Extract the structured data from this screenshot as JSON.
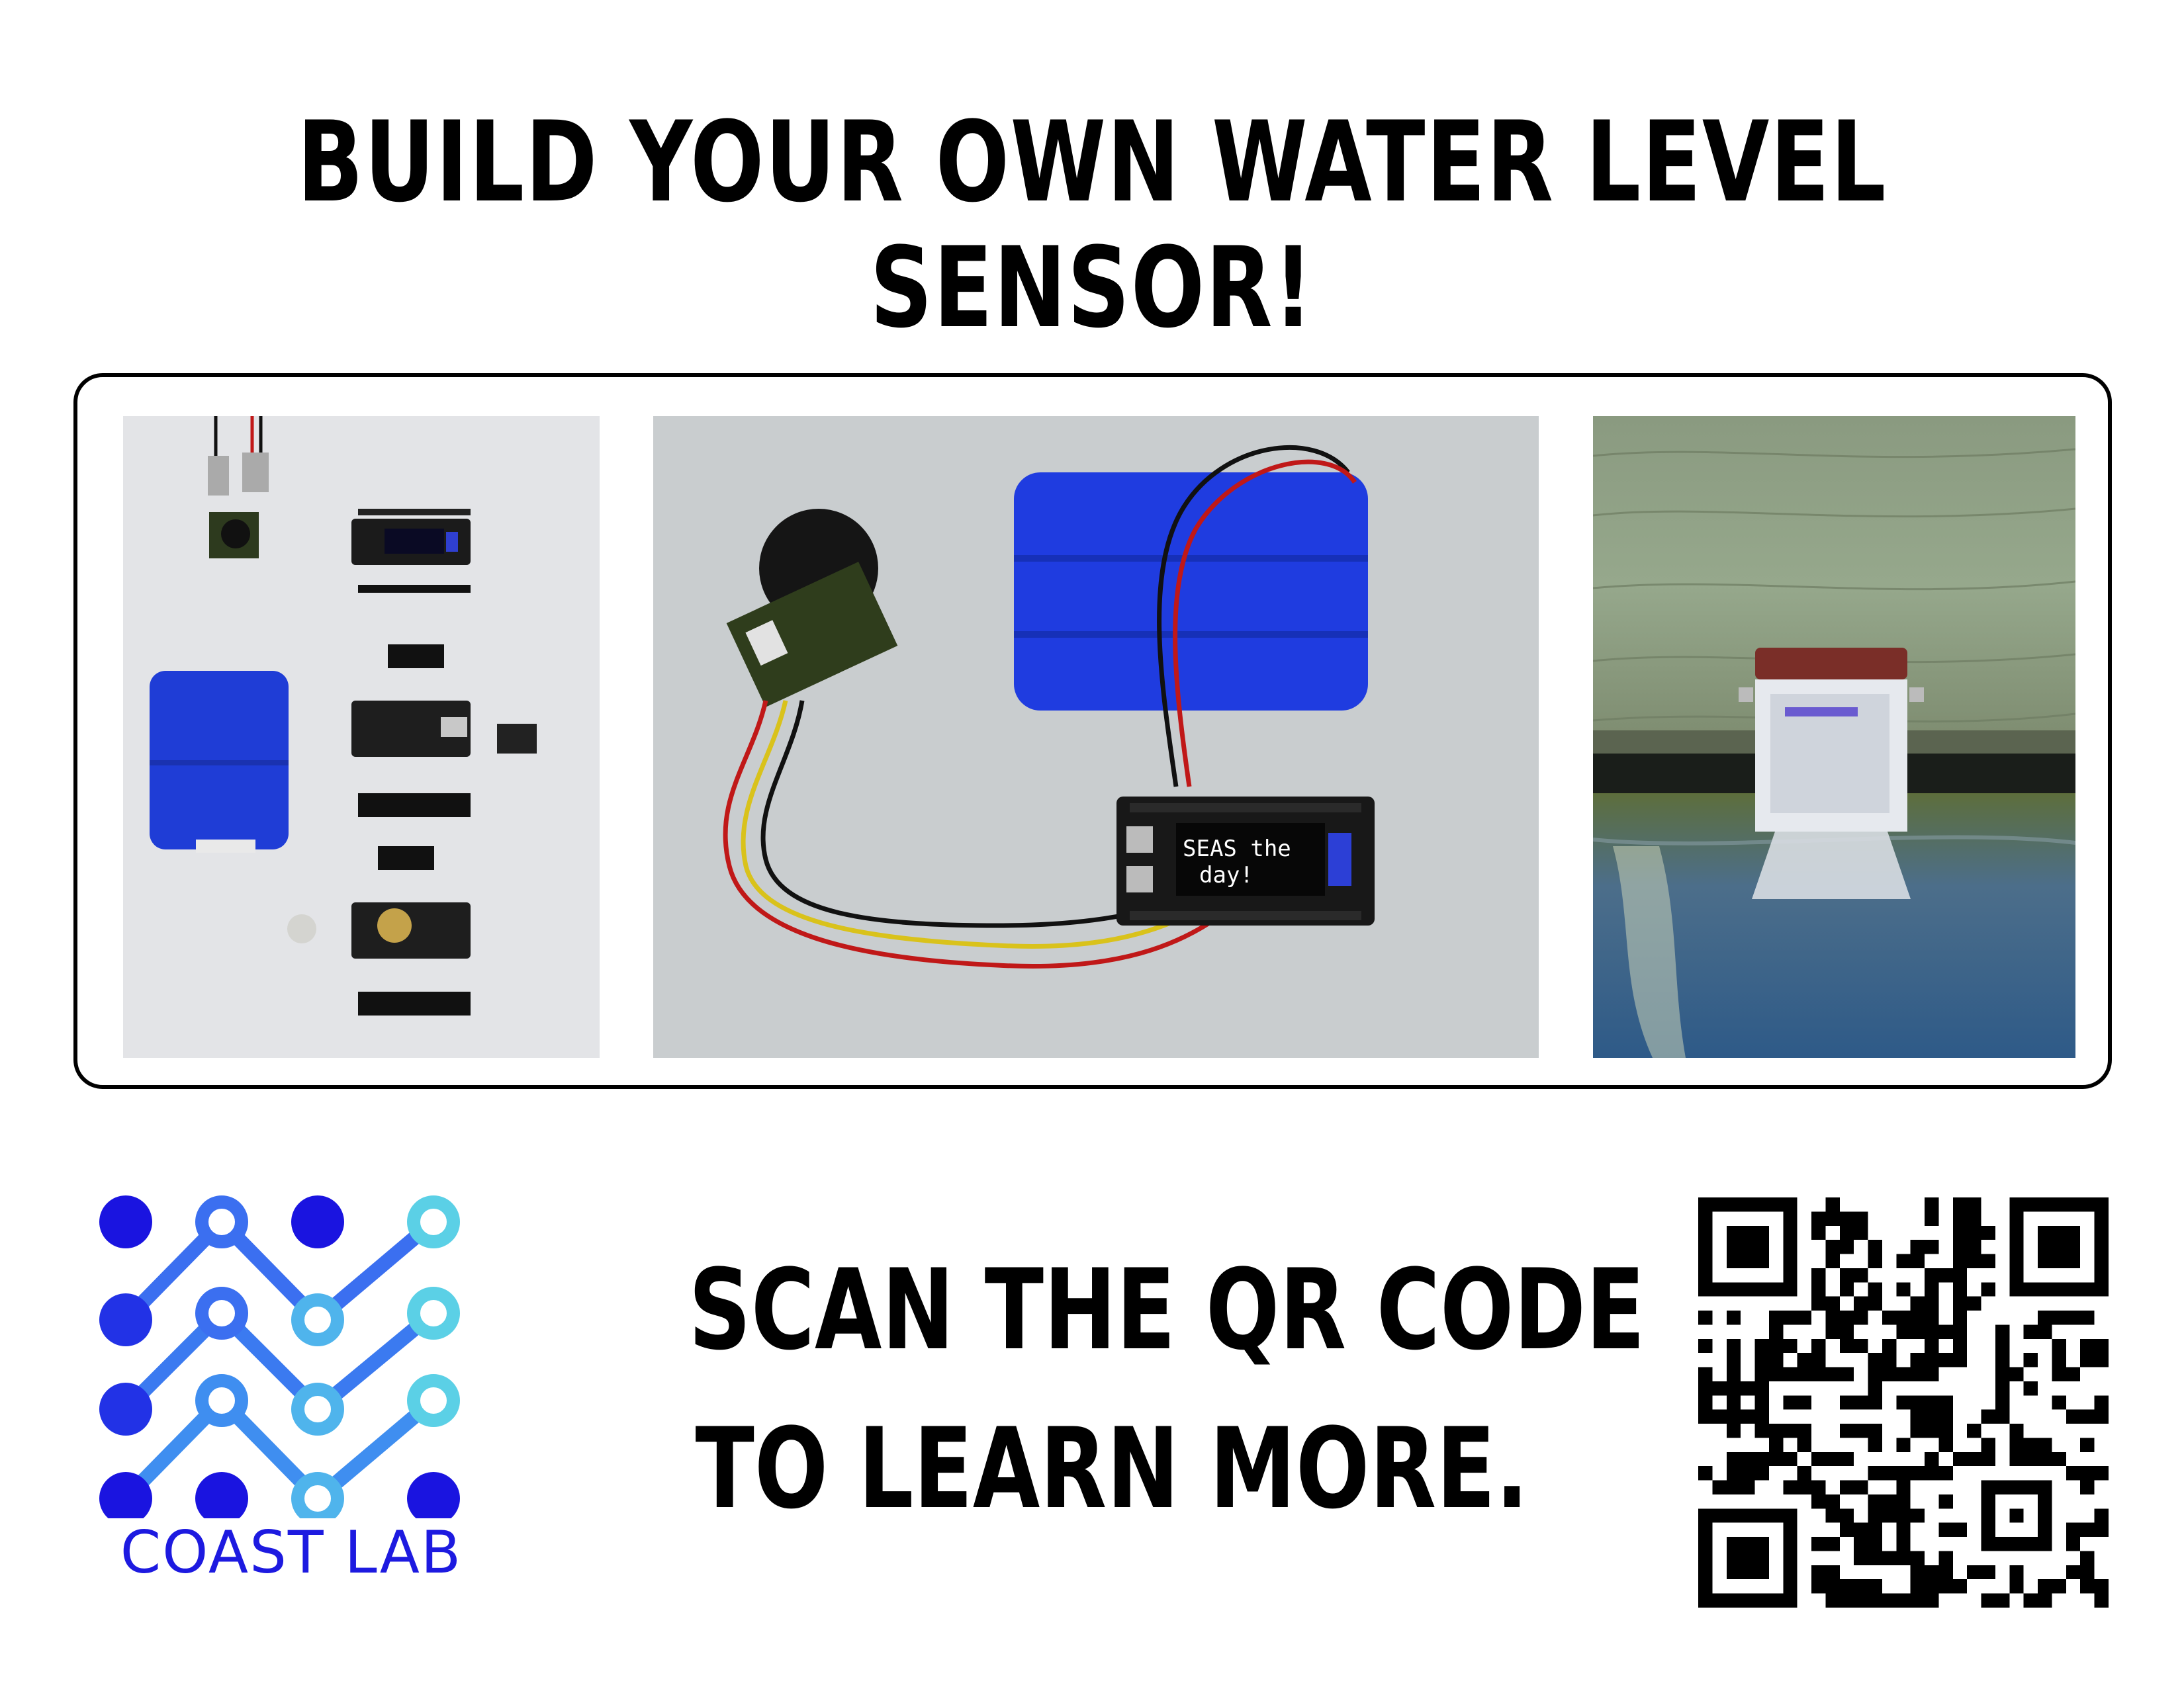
{
  "headline": "BUILD YOUR OWN WATER LEVEL SENSOR!",
  "photos": {
    "assembled": {
      "screen_line_1": "SEAS the",
      "screen_line_2": "day!"
    }
  },
  "call_to_action": {
    "line_1": "SCAN THE QR CODE",
    "line_2": "TO LEARN MORE."
  },
  "logo": {
    "name": "COAST LAB",
    "colors": [
      "#1a14e0",
      "#2f6ff0",
      "#4fb4ec",
      "#5bd0e6"
    ]
  },
  "qr_code": {
    "icon": "qr-code-icon"
  }
}
